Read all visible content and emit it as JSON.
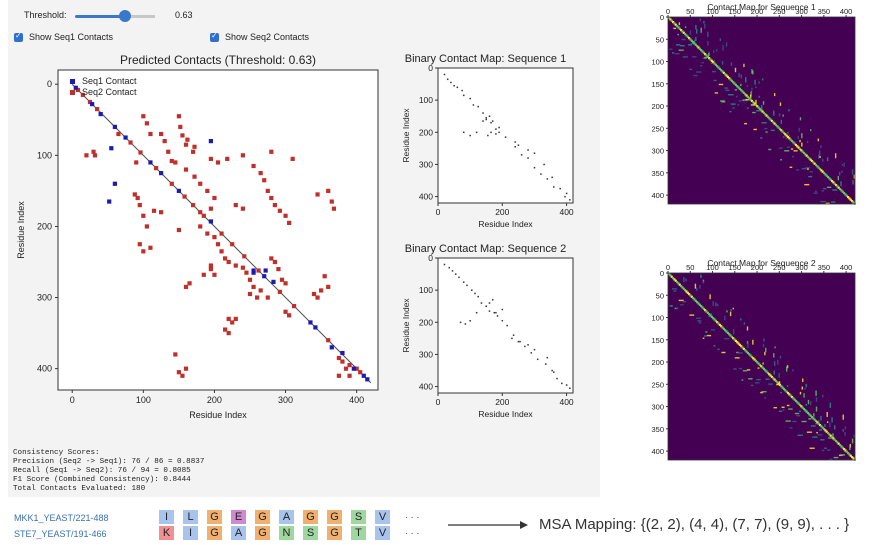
{
  "controls": {
    "threshold_label": "Threshold:",
    "threshold_value": "0.63",
    "show_seq1_label": "Show Seq1 Contacts",
    "show_seq2_label": "Show Seq2 Contacts"
  },
  "scores_text": [
    "Consistency Scores:",
    "Precision (Seq2 -> Seq1): 76 / 86 = 0.8837",
    "Recall (Seq1 -> Seq2): 76 / 94 = 0.8085",
    "F1 Score (Combined Consistency): 0.8444",
    "Total Contacts Evaluated: 180"
  ],
  "msa": {
    "seq1_name": "MKK1_YEAST/221-488",
    "seq2_name": "STE7_YEAST/191-466",
    "seq1": [
      {
        "aa": "I",
        "color": "#a8c4ec"
      },
      {
        "aa": "L",
        "color": "#a8c4ec"
      },
      {
        "aa": "G",
        "color": "#f0b070"
      },
      {
        "aa": "E",
        "color": "#d08ad0"
      },
      {
        "aa": "G",
        "color": "#f0b070"
      },
      {
        "aa": "A",
        "color": "#a8c4ec"
      },
      {
        "aa": "G",
        "color": "#f0b070"
      },
      {
        "aa": "G",
        "color": "#f0b070"
      },
      {
        "aa": "S",
        "color": "#9fd89f"
      },
      {
        "aa": "V",
        "color": "#a8c4ec"
      }
    ],
    "seq2": [
      {
        "aa": "K",
        "color": "#f09090"
      },
      {
        "aa": "I",
        "color": "#a8c4ec"
      },
      {
        "aa": "G",
        "color": "#f0b070"
      },
      {
        "aa": "A",
        "color": "#a8c4ec"
      },
      {
        "aa": "G",
        "color": "#f0b070"
      },
      {
        "aa": "N",
        "color": "#9fd89f"
      },
      {
        "aa": "S",
        "color": "#9fd89f"
      },
      {
        "aa": "G",
        "color": "#f0b070"
      },
      {
        "aa": "T",
        "color": "#9fd89f"
      },
      {
        "aa": "V",
        "color": "#a8c4ec"
      }
    ],
    "ellipsis": "...",
    "mapping_text": "MSA Mapping: {(2, 2), (4, 4), (7, 7), (9, 9), . . . }"
  },
  "chart_data": [
    {
      "type": "scatter",
      "title": "Predicted Contacts (Threshold: 0.63)",
      "xlabel": "Residue Index",
      "ylabel": "Residue Index",
      "xlim": [
        -20,
        430
      ],
      "ylim": [
        430,
        -20
      ],
      "xticks": [
        0,
        100,
        200,
        300,
        400
      ],
      "yticks": [
        0,
        100,
        200,
        300,
        400
      ],
      "legend_position": "top-left",
      "series": [
        {
          "name": "Seq1 Contact",
          "color": "#1a1ab5",
          "points": [
            [
              5,
              5
            ],
            [
              28,
              28
            ],
            [
              40,
              42
            ],
            [
              60,
              60
            ],
            [
              75,
              75
            ],
            [
              110,
              110
            ],
            [
              125,
              125
            ],
            [
              150,
              150
            ],
            [
              195,
              193
            ],
            [
              255,
              262
            ],
            [
              272,
              262
            ],
            [
              283,
              278
            ],
            [
              335,
              335
            ],
            [
              342,
              342
            ],
            [
              365,
              370
            ],
            [
              380,
              378
            ],
            [
              410,
              410
            ],
            [
              415,
              415
            ],
            [
              55,
              90
            ],
            [
              195,
              80
            ],
            [
              52,
              165
            ],
            [
              396,
              400
            ],
            [
              60,
              140
            ],
            [
              255,
              265
            ],
            [
              270,
              270
            ]
          ]
        },
        {
          "name": "Seq2 Contact",
          "color": "#c0302b",
          "points": [
            [
              8,
              8
            ],
            [
              15,
              15
            ],
            [
              25,
              25
            ],
            [
              35,
              35
            ],
            [
              65,
              70
            ],
            [
              82,
              82
            ],
            [
              96,
              96
            ],
            [
              118,
              118
            ],
            [
              140,
              140
            ],
            [
              158,
              158
            ],
            [
              170,
              170
            ],
            [
              180,
              180
            ],
            [
              210,
              210
            ],
            [
              225,
              225
            ],
            [
              242,
              242
            ],
            [
              262,
              262
            ],
            [
              292,
              292
            ],
            [
              312,
              312
            ],
            [
              360,
              360
            ],
            [
              375,
              385
            ],
            [
              390,
              395
            ],
            [
              400,
              400
            ],
            [
              405,
              405
            ],
            [
              100,
              45
            ],
            [
              105,
              55
            ],
            [
              110,
              70
            ],
            [
              150,
              45
            ],
            [
              152,
              60
            ],
            [
              155,
              72
            ],
            [
              162,
              78
            ],
            [
              160,
              85
            ],
            [
              172,
              88
            ],
            [
              170,
              95
            ],
            [
              125,
              70
            ],
            [
              130,
              80
            ],
            [
              135,
              95
            ],
            [
              140,
              108
            ],
            [
              145,
              110
            ],
            [
              30,
              95
            ],
            [
              32,
              100
            ],
            [
              20,
              100
            ],
            [
              90,
              110
            ],
            [
              88,
              155
            ],
            [
              92,
              160
            ],
            [
              95,
              170
            ],
            [
              100,
              185
            ],
            [
              105,
              200
            ],
            [
              95,
              225
            ],
            [
              100,
              235
            ],
            [
              160,
              120
            ],
            [
              172,
              130
            ],
            [
              180,
              140
            ],
            [
              190,
              150
            ],
            [
              200,
              160
            ],
            [
              195,
              175
            ],
            [
              185,
              185
            ],
            [
              180,
              200
            ],
            [
              190,
              210
            ],
            [
              200,
              215
            ],
            [
              205,
              225
            ],
            [
              210,
              235
            ],
            [
              215,
              245
            ],
            [
              220,
              250
            ],
            [
              230,
              255
            ],
            [
              240,
              258
            ],
            [
              245,
              265
            ],
            [
              250,
              275
            ],
            [
              255,
              285
            ],
            [
              265,
              290
            ],
            [
              275,
              300
            ],
            [
              195,
              105
            ],
            [
              205,
              110
            ],
            [
              218,
              105
            ],
            [
              240,
              100
            ],
            [
              255,
              115
            ],
            [
              265,
              125
            ],
            [
              270,
              135
            ],
            [
              275,
              150
            ],
            [
              280,
              160
            ],
            [
              285,
              170
            ],
            [
              292,
              178
            ],
            [
              300,
              185
            ],
            [
              305,
              195
            ],
            [
              115,
              178
            ],
            [
              125,
              180
            ],
            [
              110,
              230
            ],
            [
              150,
              205
            ],
            [
              185,
              268
            ],
            [
              195,
              260
            ],
            [
              200,
              268
            ],
            [
              160,
              285
            ],
            [
              165,
              280
            ],
            [
              280,
              95
            ],
            [
              310,
              105
            ],
            [
              230,
              170
            ],
            [
              240,
              175
            ],
            [
              345,
              155
            ],
            [
              360,
              150
            ],
            [
              365,
              165
            ],
            [
              368,
              175
            ],
            [
              360,
              285
            ],
            [
              355,
              270
            ],
            [
              350,
              290
            ],
            [
              340,
              295
            ],
            [
              345,
              300
            ],
            [
              250,
              295
            ],
            [
              260,
              300
            ],
            [
              280,
              245
            ],
            [
              285,
              250
            ],
            [
              290,
              260
            ],
            [
              295,
              275
            ],
            [
              300,
              280
            ],
            [
              145,
              380
            ],
            [
              150,
              405
            ],
            [
              155,
              410
            ],
            [
              160,
              400
            ],
            [
              195,
              255
            ],
            [
              220,
              330
            ],
            [
              215,
              345
            ],
            [
              220,
              350
            ],
            [
              225,
              335
            ],
            [
              230,
              330
            ],
            [
              300,
              320
            ],
            [
              305,
              325
            ],
            [
              380,
              390
            ],
            [
              385,
              400
            ],
            [
              390,
              410
            ],
            [
              375,
              410
            ]
          ]
        }
      ]
    },
    {
      "type": "scatter",
      "title": "Binary Contact Map: Sequence 1",
      "xlabel": "Residue Index",
      "ylabel": "Residue Index",
      "xlim": [
        0,
        420
      ],
      "ylim": [
        420,
        0
      ],
      "xticks": [
        0,
        200,
        400
      ],
      "yticks": [
        0,
        100,
        200,
        300,
        400
      ],
      "points": [
        [
          20,
          20
        ],
        [
          30,
          35
        ],
        [
          40,
          45
        ],
        [
          50,
          55
        ],
        [
          60,
          60
        ],
        [
          75,
          70
        ],
        [
          80,
          85
        ],
        [
          100,
          95
        ],
        [
          110,
          115
        ],
        [
          125,
          120
        ],
        [
          140,
          140
        ],
        [
          150,
          155
        ],
        [
          160,
          150
        ],
        [
          165,
          170
        ],
        [
          170,
          165
        ],
        [
          180,
          190
        ],
        [
          190,
          185
        ],
        [
          210,
          215
        ],
        [
          240,
          245
        ],
        [
          260,
          270
        ],
        [
          280,
          280
        ],
        [
          300,
          310
        ],
        [
          320,
          330
        ],
        [
          340,
          345
        ],
        [
          360,
          370
        ],
        [
          380,
          375
        ],
        [
          400,
          390
        ],
        [
          395,
          400
        ],
        [
          410,
          410
        ],
        [
          190,
          200
        ],
        [
          180,
          205
        ],
        [
          165,
          200
        ],
        [
          155,
          210
        ],
        [
          150,
          160
        ],
        [
          140,
          165
        ],
        [
          120,
          200
        ],
        [
          100,
          210
        ],
        [
          80,
          200
        ],
        [
          240,
          230
        ],
        [
          250,
          240
        ],
        [
          280,
          255
        ],
        [
          300,
          265
        ],
        [
          330,
          300
        ],
        [
          355,
          340
        ]
      ]
    },
    {
      "type": "scatter",
      "title": "Binary Contact Map: Sequence 2",
      "xlabel": "Residue Index",
      "ylabel": "Residue Index",
      "xlim": [
        0,
        420
      ],
      "ylim": [
        420,
        0
      ],
      "xticks": [
        0,
        200,
        400
      ],
      "yticks": [
        0,
        100,
        200,
        300,
        400
      ],
      "points": [
        [
          20,
          20
        ],
        [
          35,
          30
        ],
        [
          45,
          40
        ],
        [
          55,
          50
        ],
        [
          65,
          60
        ],
        [
          80,
          75
        ],
        [
          90,
          85
        ],
        [
          105,
          100
        ],
        [
          115,
          110
        ],
        [
          125,
          120
        ],
        [
          135,
          140
        ],
        [
          150,
          150
        ],
        [
          160,
          165
        ],
        [
          175,
          170
        ],
        [
          185,
          180
        ],
        [
          200,
          195
        ],
        [
          215,
          210
        ],
        [
          235,
          240
        ],
        [
          255,
          260
        ],
        [
          270,
          275
        ],
        [
          290,
          295
        ],
        [
          310,
          315
        ],
        [
          335,
          330
        ],
        [
          355,
          350
        ],
        [
          370,
          375
        ],
        [
          385,
          390
        ],
        [
          400,
          395
        ],
        [
          410,
          405
        ],
        [
          160,
          140
        ],
        [
          150,
          150
        ],
        [
          170,
          130
        ],
        [
          180,
          170
        ],
        [
          200,
          160
        ],
        [
          120,
          170
        ],
        [
          100,
          195
        ],
        [
          85,
          205
        ],
        [
          70,
          200
        ],
        [
          230,
          250
        ],
        [
          250,
          260
        ],
        [
          280,
          270
        ],
        [
          300,
          285
        ],
        [
          340,
          310
        ],
        [
          360,
          355
        ]
      ]
    },
    {
      "type": "heatmap",
      "title": "Contact Map for Sequence 1",
      "xticks": [
        0,
        50,
        100,
        150,
        200,
        250,
        300,
        350,
        400
      ],
      "yticks": [
        0,
        50,
        100,
        150,
        200,
        250,
        300,
        350,
        400
      ],
      "range": [
        0,
        420
      ],
      "colormap": "viridis"
    },
    {
      "type": "heatmap",
      "title": "Contact Map for Sequence 2",
      "xticks": [
        0,
        50,
        100,
        150,
        200,
        250,
        300,
        350,
        400
      ],
      "yticks": [
        0,
        50,
        100,
        150,
        200,
        250,
        300,
        350,
        400
      ],
      "range": [
        0,
        420
      ],
      "colormap": "viridis"
    }
  ]
}
